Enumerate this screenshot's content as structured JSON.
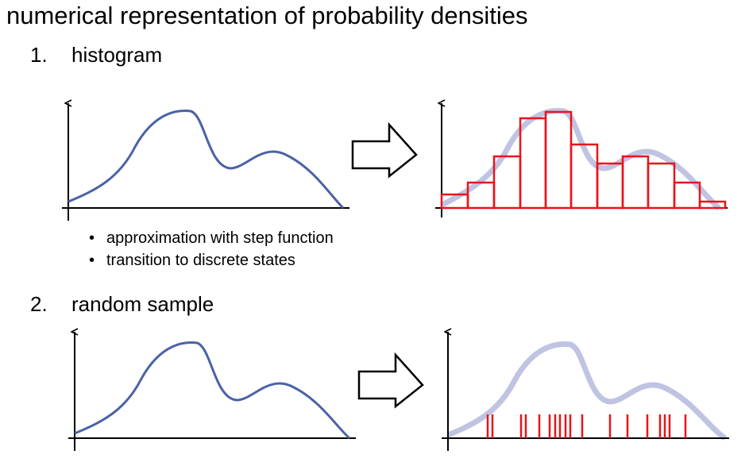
{
  "title": "numerical representation of probability densities",
  "section1": {
    "number": "1.",
    "label": "histogram"
  },
  "bullets": [
    "approximation with step function",
    "transition to discrete states"
  ],
  "section2": {
    "number": "2.",
    "label": "random sample"
  },
  "colors": {
    "curve": "#4a62a6",
    "ghost_curve": "#c0c4e2",
    "histogram": "#e8141b",
    "samples": "#e8141b",
    "axes": "#000000"
  },
  "icons": {
    "transform_arrow": "right-arrow-icon"
  }
}
